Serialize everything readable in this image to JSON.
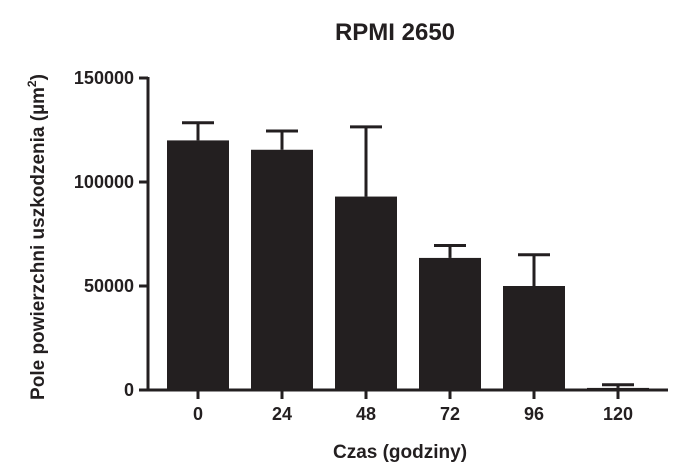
{
  "chart_data": {
    "type": "bar",
    "title": "RPMI 2650",
    "xlabel": "Czas (godziny)",
    "ylabel_prefix": "Pole powierzchni uszkodzenia (",
    "ylabel_unit": "µm",
    "ylabel_superscript": "2",
    "ylabel_suffix": ")",
    "categories": [
      "0",
      "24",
      "48",
      "72",
      "96",
      "120"
    ],
    "values": [
      120000,
      115500,
      93000,
      63500,
      50000,
      1000
    ],
    "error_upper": [
      8500,
      9000,
      33500,
      6000,
      15000,
      1500
    ],
    "ylim": [
      0,
      150000
    ],
    "yticks": [
      0,
      50000,
      100000,
      150000
    ],
    "ytick_labels": [
      "0",
      "50000",
      "100000",
      "150000"
    ],
    "bar_color": "#231f20",
    "axis_color": "#231f20",
    "grid": false,
    "legend": "none"
  }
}
